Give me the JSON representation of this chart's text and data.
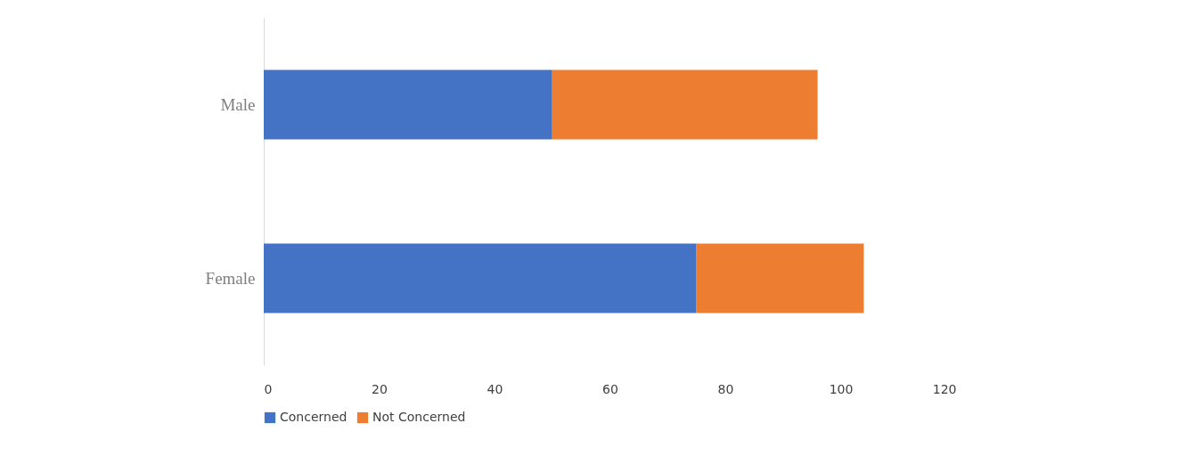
{
  "chart_data": {
    "type": "bar",
    "orientation": "horizontal",
    "stacked": true,
    "categories": [
      "Male",
      "Female"
    ],
    "series": [
      {
        "name": "Concerned",
        "color": "#4472c4",
        "values": [
          50,
          75
        ]
      },
      {
        "name": "Not Concerned",
        "color": "#ed7d31",
        "values": [
          46,
          29
        ]
      }
    ],
    "xlim": [
      0,
      120
    ],
    "xticks": [
      0,
      20,
      40,
      60,
      80,
      100,
      120
    ],
    "grid": false,
    "legend": "bottom"
  }
}
